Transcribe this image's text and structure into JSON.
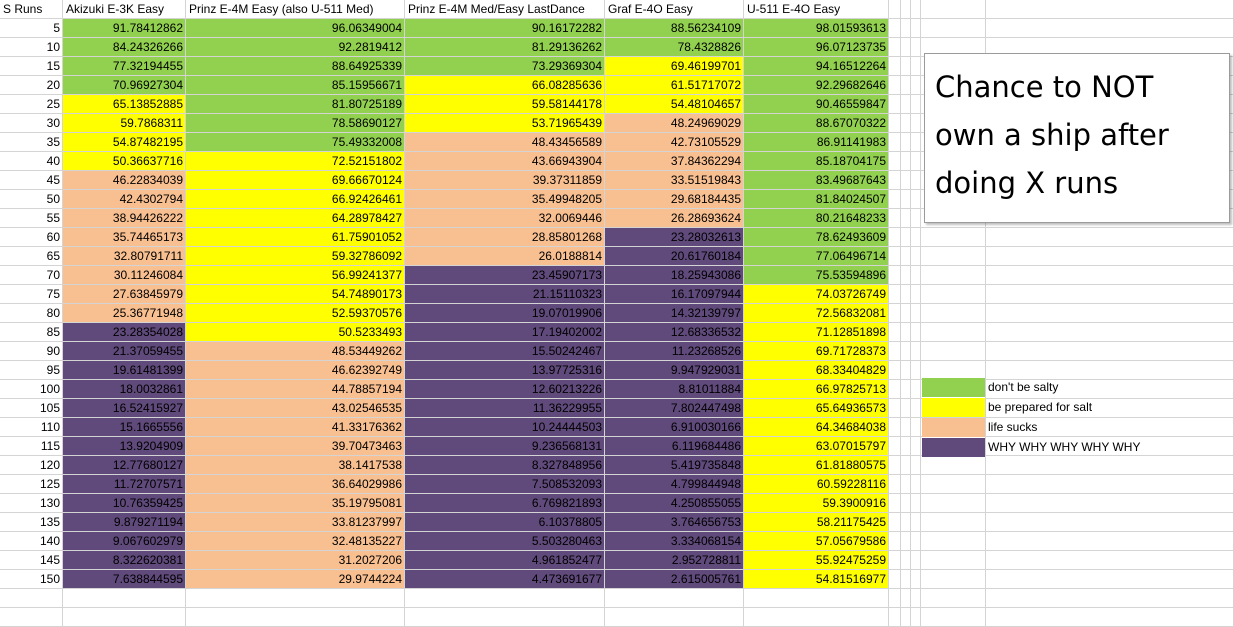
{
  "sheet": {
    "headers": [
      "S Runs",
      "Akizuki E-3K Easy",
      "Prinz E-4M Easy (also U-511 Med)",
      "Prinz E-4M Med/Easy LastDance",
      "Graf E-4O Easy",
      "U-511 E-4O Easy"
    ],
    "runs": [
      "5",
      "10",
      "15",
      "20",
      "25",
      "30",
      "35",
      "40",
      "45",
      "50",
      "55",
      "60",
      "65",
      "70",
      "75",
      "80",
      "85",
      "90",
      "95",
      "100",
      "105",
      "110",
      "115",
      "120",
      "125",
      "130",
      "135",
      "140",
      "145",
      "150"
    ],
    "columns": [
      [
        "91.78412862",
        "84.24326266",
        "77.32194455",
        "70.96927304",
        "65.13852885",
        "59.7868311",
        "54.87482195",
        "50.36637716",
        "46.22834039",
        "42.4302794",
        "38.94426222",
        "35.74465173",
        "32.80791711",
        "30.11246084",
        "27.63845979",
        "25.36771948",
        "23.28354028",
        "21.37059455",
        "19.61481399",
        "18.0032861",
        "16.52415927",
        "15.1665556",
        "13.9204909",
        "12.77680127",
        "11.72707571",
        "10.76359425",
        "9.879271194",
        "9.067602979",
        "8.322620381",
        "7.638844595"
      ],
      [
        "96.06349004",
        "92.2819412",
        "88.64925339",
        "85.15956671",
        "81.80725189",
        "78.58690127",
        "75.49332008",
        "72.52151802",
        "69.66670124",
        "66.92426461",
        "64.28978427",
        "61.75901052",
        "59.32786092",
        "56.99241377",
        "54.74890173",
        "52.59370576",
        "50.5233493",
        "48.53449262",
        "46.62392749",
        "44.78857194",
        "43.02546535",
        "41.33176362",
        "39.70473463",
        "38.1417538",
        "36.64029986",
        "35.19795081",
        "33.81237997",
        "32.48135227",
        "31.2027206",
        "29.9744224"
      ],
      [
        "90.16172282",
        "81.29136262",
        "73.29369304",
        "66.08285636",
        "59.58144178",
        "53.71965439",
        "48.43456589",
        "43.66943904",
        "39.37311859",
        "35.49948205",
        "32.0069446",
        "28.85801268",
        "26.0188814",
        "23.45907173",
        "21.15110323",
        "19.07019906",
        "17.19402002",
        "15.50242467",
        "13.97725316",
        "12.60213226",
        "11.36229955",
        "10.24444503",
        "9.236568131",
        "8.327848956",
        "7.508532093",
        "6.769821893",
        "6.10378805",
        "5.503280463",
        "4.961852477",
        "4.473691677"
      ],
      [
        "88.56234109",
        "78.4328826",
        "69.46199701",
        "61.51717072",
        "54.48104657",
        "48.24969029",
        "42.73105529",
        "37.84362294",
        "33.51519843",
        "29.68184435",
        "26.28693624",
        "23.28032613",
        "20.61760184",
        "18.25943086",
        "16.17097944",
        "14.32139797",
        "12.68336532",
        "11.23268526",
        "9.947929031",
        "8.81011884",
        "7.802447498",
        "6.910030166",
        "6.119684486",
        "5.419735848",
        "4.799844948",
        "4.250855055",
        "3.764656753",
        "3.334068154",
        "2.952728811",
        "2.615005761"
      ],
      [
        "98.01593613",
        "96.07123735",
        "94.16512264",
        "92.29682646",
        "90.46559847",
        "88.67070322",
        "86.91141983",
        "85.18704175",
        "83.49687643",
        "81.84024507",
        "80.21648233",
        "78.62493609",
        "77.06496714",
        "75.53594896",
        "74.03726749",
        "72.56832081",
        "71.12851898",
        "69.71728373",
        "68.33404829",
        "66.97825713",
        "65.64936573",
        "64.34684038",
        "63.07015797",
        "61.81880575",
        "60.59228116",
        "59.3900916",
        "58.21175425",
        "57.05679586",
        "55.92475259",
        "54.81516977"
      ]
    ]
  },
  "textbox": {
    "line1": "Chance to NOT",
    "line2": "own a ship after",
    "line3": "doing X runs"
  },
  "legend": [
    {
      "label": "don't be salty",
      "color": "#92d050"
    },
    {
      "label": "be prepared for salt",
      "color": "#ffff00"
    },
    {
      "label": "life sucks",
      "color": "#f8bf91"
    },
    {
      "label": "WHY WHY WHY WHY WHY",
      "color": "#604a7b"
    }
  ]
}
